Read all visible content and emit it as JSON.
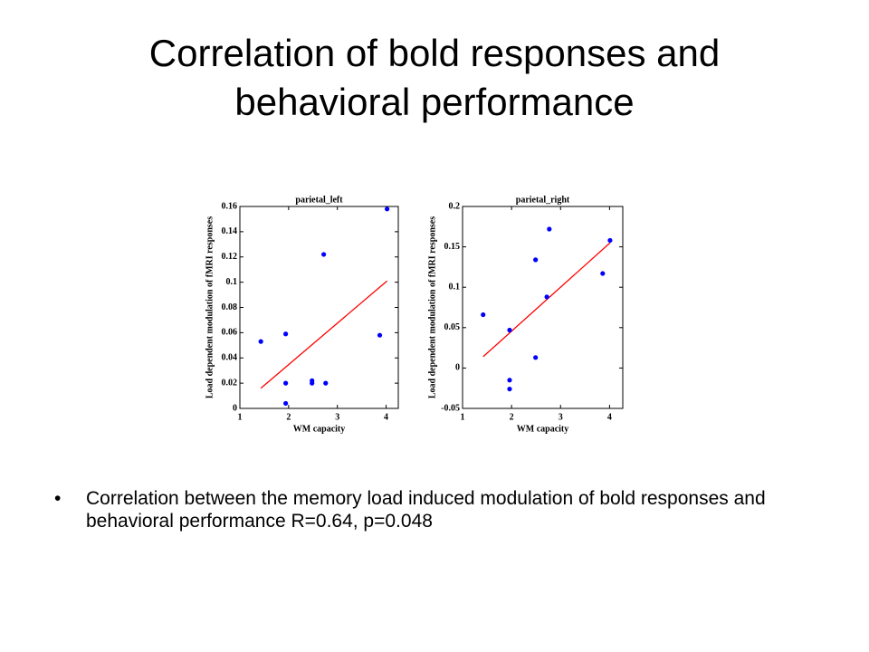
{
  "slide_title": "Correlation of bold responses and behavioral performance",
  "bullet": "Correlation between the memory load induced modulation of bold responses and behavioral performance R=0.64, p=0.048",
  "chart_data": [
    {
      "type": "scatter",
      "title": "parietal_left",
      "x_label": "WM capacity",
      "y_label": "Load dependent modulation of fMRI responses",
      "x": [
        1.43,
        1.94,
        1.94,
        1.94,
        2.48,
        2.48,
        2.72,
        2.76,
        3.87,
        4.02
      ],
      "values": [
        0.053,
        0.059,
        0.02,
        0.004,
        0.022,
        0.02,
        0.122,
        0.02,
        0.058,
        0.158
      ],
      "color": "#0000ff",
      "fit": {
        "x": [
          1.43,
          4.02
        ],
        "y": [
          0.016,
          0.101
        ],
        "color": "#ff0000"
      },
      "xlim": [
        1,
        4.25
      ],
      "xticks": [
        1,
        2,
        3,
        4
      ],
      "ylim": [
        0,
        0.16
      ],
      "yticks": [
        0,
        0.02,
        0.04,
        0.06,
        0.08,
        0.1,
        0.12,
        0.14,
        0.16
      ]
    },
    {
      "type": "scatter",
      "title": "parietal_right",
      "x_label": "WM capacity",
      "y_label": "Load dependent modulation of fMRI responses",
      "x": [
        1.42,
        1.96,
        1.96,
        1.96,
        2.49,
        2.49,
        2.72,
        2.77,
        3.86,
        4.01
      ],
      "values": [
        0.066,
        0.047,
        -0.015,
        -0.026,
        0.134,
        0.013,
        0.088,
        0.172,
        0.117,
        0.158
      ],
      "color": "#0000ff",
      "fit": {
        "x": [
          1.42,
          4.01
        ],
        "y": [
          0.014,
          0.155
        ],
        "color": "#ff0000"
      },
      "xlim": [
        1,
        4.27
      ],
      "xticks": [
        1,
        2,
        3,
        4
      ],
      "ylim": [
        -0.05,
        0.2
      ],
      "yticks": [
        -0.05,
        0,
        0.05,
        0.1,
        0.15,
        0.2
      ]
    }
  ]
}
